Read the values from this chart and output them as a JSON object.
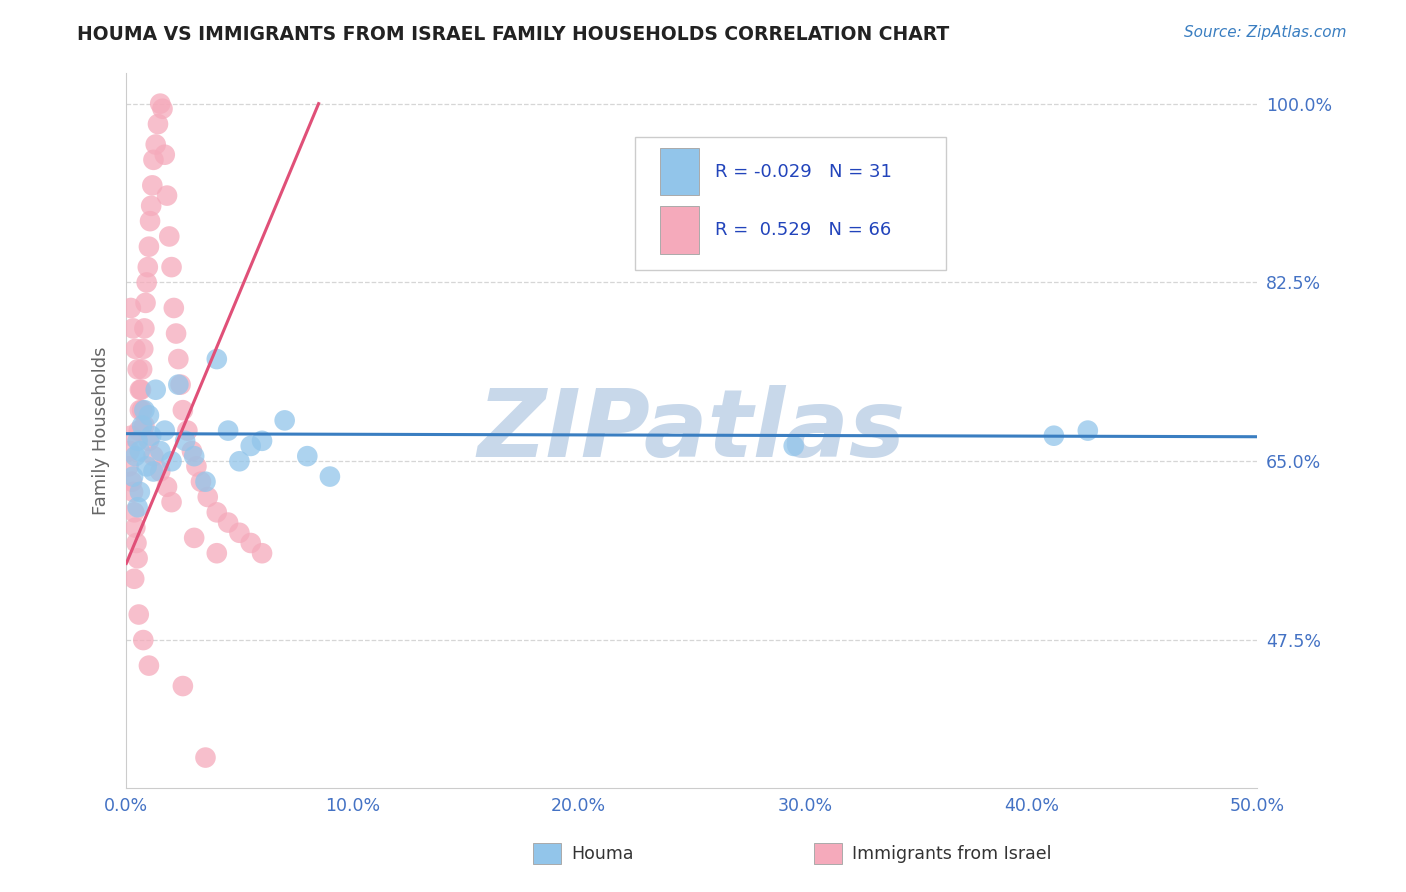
{
  "title": "HOUMA VS IMMIGRANTS FROM ISRAEL FAMILY HOUSEHOLDS CORRELATION CHART",
  "source_text": "Source: ZipAtlas.com",
  "xlabel_houma": "Houma",
  "xlabel_israel": "Immigrants from Israel",
  "ylabel": "Family Households",
  "xmin": 0.0,
  "xmax": 50.0,
  "ymin": 33.0,
  "ymax": 103.0,
  "yticks": [
    47.5,
    65.0,
    82.5,
    100.0
  ],
  "xticks": [
    0.0,
    10.0,
    20.0,
    30.0,
    40.0,
    50.0
  ],
  "blue_R": -0.029,
  "blue_N": 31,
  "pink_R": 0.529,
  "pink_N": 66,
  "blue_color": "#92C5EA",
  "pink_color": "#F5AABB",
  "blue_line_color": "#3A7EC1",
  "pink_line_color": "#E05078",
  "watermark_text": "ZIPatlas",
  "watermark_color": "#C8D8EA",
  "title_color": "#222222",
  "tick_label_color": "#4472C4",
  "grid_color": "#CCCCCC",
  "background_color": "#FFFFFF",
  "blue_x": [
    0.3,
    0.4,
    0.5,
    0.6,
    0.7,
    0.8,
    0.9,
    1.0,
    1.1,
    1.2,
    1.3,
    1.5,
    1.7,
    2.0,
    2.3,
    2.6,
    3.0,
    3.5,
    4.0,
    4.5,
    5.0,
    5.5,
    6.0,
    7.0,
    8.0,
    9.0,
    0.5,
    0.6,
    29.5,
    41.0,
    42.5
  ],
  "blue_y": [
    63.5,
    65.5,
    67.0,
    66.0,
    68.5,
    70.0,
    64.5,
    69.5,
    67.5,
    64.0,
    72.0,
    66.0,
    68.0,
    65.0,
    72.5,
    67.0,
    65.5,
    63.0,
    75.0,
    68.0,
    65.0,
    66.5,
    67.0,
    69.0,
    65.5,
    63.5,
    60.5,
    62.0,
    66.5,
    67.5,
    68.0
  ],
  "pink_x": [
    0.1,
    0.15,
    0.2,
    0.25,
    0.3,
    0.35,
    0.4,
    0.45,
    0.5,
    0.55,
    0.6,
    0.65,
    0.7,
    0.75,
    0.8,
    0.85,
    0.9,
    0.95,
    1.0,
    1.05,
    1.1,
    1.15,
    1.2,
    1.3,
    1.4,
    1.5,
    1.6,
    1.7,
    1.8,
    1.9,
    2.0,
    2.1,
    2.2,
    2.3,
    2.4,
    2.5,
    2.7,
    2.9,
    3.1,
    3.3,
    3.6,
    4.0,
    4.5,
    5.0,
    5.5,
    6.0,
    0.2,
    0.3,
    0.4,
    0.5,
    0.6,
    0.7,
    0.8,
    1.0,
    1.2,
    1.5,
    1.8,
    2.0,
    3.0,
    4.0,
    0.35,
    0.55,
    0.75,
    1.0,
    2.5,
    3.5
  ],
  "pink_y": [
    64.5,
    66.0,
    67.5,
    63.0,
    62.0,
    60.0,
    58.5,
    57.0,
    55.5,
    68.0,
    70.0,
    72.0,
    74.0,
    76.0,
    78.0,
    80.5,
    82.5,
    84.0,
    86.0,
    88.5,
    90.0,
    92.0,
    94.5,
    96.0,
    98.0,
    100.0,
    99.5,
    95.0,
    91.0,
    87.0,
    84.0,
    80.0,
    77.5,
    75.0,
    72.5,
    70.0,
    68.0,
    66.0,
    64.5,
    63.0,
    61.5,
    60.0,
    59.0,
    58.0,
    57.0,
    56.0,
    80.0,
    78.0,
    76.0,
    74.0,
    72.0,
    70.0,
    68.5,
    67.0,
    65.5,
    64.0,
    62.5,
    61.0,
    57.5,
    56.0,
    53.5,
    50.0,
    47.5,
    45.0,
    43.0,
    36.0
  ],
  "blue_trend_x": [
    0.0,
    50.0
  ],
  "blue_trend_y": [
    67.7,
    67.4
  ],
  "pink_trend_x": [
    0.0,
    8.5
  ],
  "pink_trend_y": [
    55.0,
    100.0
  ]
}
